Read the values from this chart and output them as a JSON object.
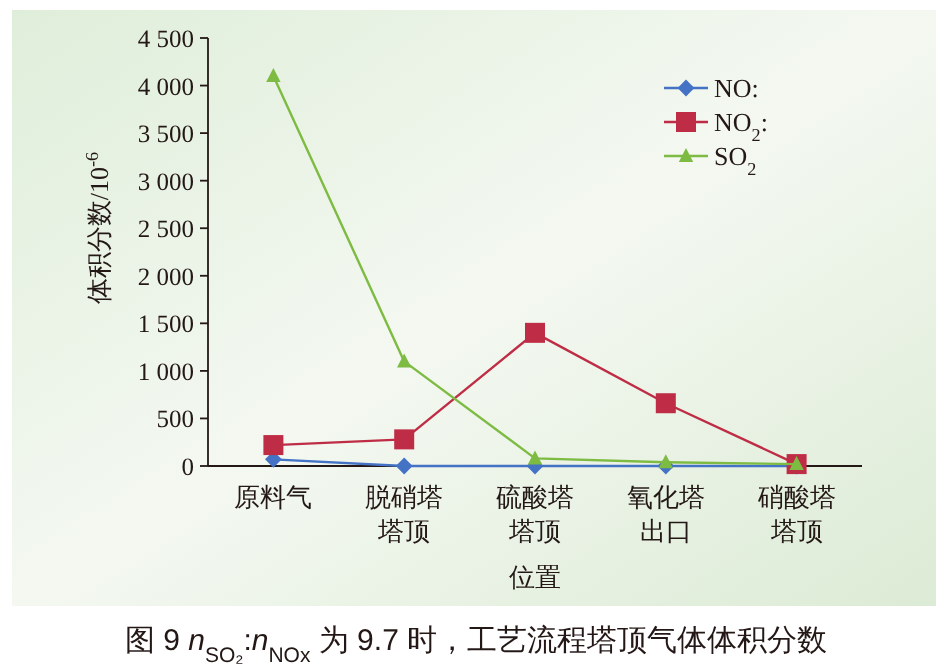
{
  "chart_data": {
    "type": "line",
    "title": "图 9  *n*$_{SO₂}$:*n*$_{NOx}$ 为 9.7 时，工艺流程塔顶气体体积分数",
    "xlabel": "位置",
    "ylabel": "体积分数/10$^{-6}$",
    "categories": [
      "原料气",
      "脱硝塔塔顶",
      "硫酸塔塔顶",
      "氧化塔出口",
      "硝酸塔塔顶"
    ],
    "series": [
      {
        "name": "NO:",
        "color": "#4472c4",
        "marker": "diamond",
        "values": [
          70,
          0,
          0,
          0,
          0
        ]
      },
      {
        "name": "NO$_{2}$:",
        "color": "#be2d45",
        "marker": "square",
        "values": [
          220,
          280,
          1400,
          660,
          20
        ]
      },
      {
        "name": "SO$_{2}$",
        "color": "#7dbb42",
        "marker": "triangle",
        "values": [
          4100,
          1100,
          80,
          40,
          20
        ]
      }
    ],
    "ylim": [
      0,
      4500
    ],
    "yticks": [
      0,
      500,
      {
        "value": 1000,
        "label": "1 000"
      },
      {
        "value": 1500,
        "label": "1 500"
      },
      {
        "value": 2000,
        "label": "2 000"
      },
      {
        "value": 2500,
        "label": "2 500"
      },
      {
        "value": 3000,
        "label": "3 000"
      },
      {
        "value": 3500,
        "label": "3 500"
      },
      {
        "value": 4000,
        "label": "4 000"
      },
      {
        "value": 4500,
        "label": "4 500"
      }
    ],
    "legend": "top right",
    "line_style": "solid",
    "grid": false
  }
}
